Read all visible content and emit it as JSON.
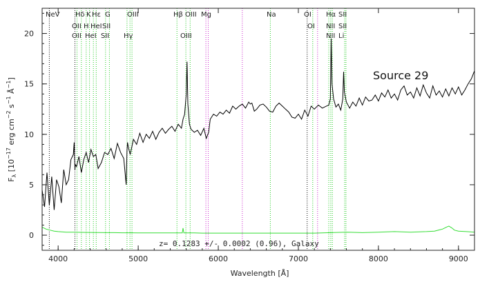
{
  "chart_data": {
    "type": "line",
    "title": "",
    "xlabel": "Wavelength [Å]",
    "ylabel": "F_λ [10^-17 erg cm^-2 s^-1 Å^-1]",
    "ylabel_parts": {
      "f": "F",
      "lambda": "λ",
      "a": " [10",
      "e17": "−17",
      "b": " erg cm",
      "e2a": "−2",
      "c": " s",
      "e1a": "−1",
      "d": " Å",
      "e1b": "−1",
      "close": "]"
    },
    "xlim": [
      3800,
      9200
    ],
    "ylim": [
      -1.5,
      22.5
    ],
    "x_ticks": [
      4000,
      5000,
      6000,
      7000,
      8000,
      9000
    ],
    "y_ticks": [
      0,
      5,
      10,
      15,
      20
    ],
    "source_label": "Source 29",
    "annotation": "z= 0.1283 +/- 0.0002 (0.96), Galaxy",
    "colors": {
      "flux": "#000000",
      "error": "#33dd33",
      "emission": "#22cc22",
      "absorption": "#000000",
      "sky": "#cc22cc"
    },
    "series": [
      {
        "role": "flux",
        "x": [
          3800,
          3830,
          3860,
          3890,
          3920,
          3950,
          3980,
          4010,
          4040,
          4070,
          4100,
          4130,
          4160,
          4190,
          4200,
          4210,
          4215,
          4230,
          4260,
          4290,
          4320,
          4350,
          4380,
          4410,
          4440,
          4470,
          4500,
          4540,
          4580,
          4620,
          4660,
          4700,
          4740,
          4780,
          4820,
          4850,
          4860,
          4866,
          4880,
          4900,
          4940,
          4980,
          5020,
          5060,
          5100,
          5140,
          5180,
          5220,
          5260,
          5300,
          5340,
          5380,
          5420,
          5460,
          5500,
          5540,
          5560,
          5580,
          5600,
          5610,
          5620,
          5640,
          5660,
          5700,
          5740,
          5780,
          5820,
          5850,
          5880,
          5900,
          5940,
          5980,
          6020,
          6060,
          6100,
          6140,
          6180,
          6220,
          6260,
          6300,
          6340,
          6380,
          6400,
          6420,
          6450,
          6480,
          6520,
          6560,
          6600,
          6640,
          6680,
          6720,
          6760,
          6800,
          6840,
          6880,
          6920,
          6960,
          7000,
          7040,
          7080,
          7120,
          7160,
          7200,
          7250,
          7300,
          7350,
          7380,
          7400,
          7410,
          7420,
          7440,
          7470,
          7500,
          7530,
          7555,
          7565,
          7575,
          7600,
          7640,
          7680,
          7720,
          7760,
          7800,
          7840,
          7880,
          7920,
          7960,
          8000,
          8040,
          8080,
          8120,
          8160,
          8200,
          8240,
          8280,
          8320,
          8360,
          8400,
          8440,
          8480,
          8520,
          8560,
          8600,
          8640,
          8680,
          8720,
          8760,
          8800,
          8840,
          8880,
          8920,
          8960,
          9000,
          9040,
          9080,
          9120,
          9160,
          9200
        ],
        "y": [
          4.5,
          2.8,
          6.2,
          3.0,
          5.8,
          2.5,
          5.5,
          4.8,
          3.2,
          6.5,
          5.0,
          5.5,
          7.5,
          8.0,
          9.2,
          6.5,
          7.0,
          6.8,
          7.8,
          6.2,
          7.5,
          8.2,
          7.2,
          8.5,
          7.8,
          8.0,
          6.6,
          7.2,
          8.2,
          8.0,
          8.6,
          7.6,
          9.1,
          8.2,
          7.6,
          5.0,
          8.4,
          9.2,
          8.6,
          8.0,
          9.5,
          9.0,
          10.1,
          9.2,
          10.0,
          9.6,
          10.3,
          9.5,
          10.2,
          10.6,
          10.1,
          10.5,
          10.8,
          10.3,
          11.0,
          10.6,
          11.5,
          12.0,
          14.0,
          17.2,
          13.0,
          11.0,
          10.5,
          10.2,
          10.4,
          9.9,
          10.6,
          9.6,
          10.2,
          11.5,
          12.0,
          11.8,
          12.2,
          12.0,
          12.4,
          12.1,
          12.8,
          12.5,
          12.8,
          13.0,
          12.6,
          13.2,
          13.0,
          13.1,
          12.3,
          12.5,
          12.9,
          13.0,
          12.7,
          12.3,
          12.2,
          12.8,
          13.1,
          12.8,
          12.5,
          12.2,
          11.7,
          11.6,
          12.0,
          11.5,
          12.4,
          11.8,
          12.8,
          12.5,
          12.9,
          12.6,
          12.8,
          12.9,
          13.5,
          19.5,
          15.0,
          13.5,
          12.7,
          13.0,
          12.4,
          13.5,
          16.2,
          14.2,
          13.2,
          12.6,
          13.2,
          12.8,
          13.6,
          12.9,
          13.7,
          13.3,
          13.4,
          13.9,
          13.3,
          14.1,
          13.7,
          14.4,
          13.6,
          14.0,
          13.4,
          14.4,
          14.8,
          13.9,
          14.2,
          13.6,
          14.6,
          13.8,
          14.9,
          14.1,
          13.6,
          14.8,
          13.9,
          14.3,
          13.7,
          14.5,
          13.8,
          14.6,
          14.0,
          14.7,
          13.9,
          14.4,
          15.0,
          15.5,
          16.3
        ]
      },
      {
        "role": "error",
        "x": [
          3800,
          3850,
          3900,
          3950,
          4000,
          4100,
          4200,
          4300,
          4400,
          4500,
          4600,
          4700,
          4800,
          4900,
          5000,
          5200,
          5400,
          5550,
          5560,
          5570,
          5600,
          5700,
          5800,
          6000,
          6200,
          6400,
          6600,
          6800,
          7000,
          7200,
          7400,
          7600,
          7800,
          8000,
          8200,
          8400,
          8600,
          8700,
          8800,
          8850,
          8880,
          8920,
          8950,
          9000,
          9100,
          9200
        ],
        "y": [
          0.8,
          0.6,
          0.5,
          0.4,
          0.35,
          0.3,
          0.3,
          0.28,
          0.27,
          0.26,
          0.25,
          0.25,
          0.24,
          0.24,
          0.23,
          0.23,
          0.22,
          0.22,
          0.7,
          0.22,
          0.22,
          0.22,
          0.2,
          0.2,
          0.2,
          0.2,
          0.2,
          0.2,
          0.2,
          0.2,
          0.25,
          0.3,
          0.25,
          0.3,
          0.35,
          0.3,
          0.35,
          0.4,
          0.6,
          0.8,
          0.9,
          0.7,
          0.5,
          0.4,
          0.35,
          0.3
        ]
      }
    ],
    "spectral_lines": {
      "top_row": [
        {
          "label": "NeV",
          "x": 3869,
          "kind": "emission"
        },
        {
          "label": "Hδ",
          "x": 4102,
          "kind": "absorption"
        },
        {
          "label": "K",
          "x": 3934,
          "kind": "absorption"
        },
        {
          "label": "Hε",
          "x": 4340,
          "kind": "absorption"
        },
        {
          "label": "G",
          "x": 4304,
          "kind": "absorption"
        },
        {
          "label": "OIII",
          "x": 4959,
          "kind": "emission"
        },
        {
          "label": "Hβ",
          "x": 4861,
          "kind": "emission"
        },
        {
          "label": "OIII",
          "x": 5007,
          "kind": "emission"
        },
        {
          "label": "Mg",
          "x": 5175,
          "kind": "absorption"
        },
        {
          "label": "Na",
          "x": 5894,
          "kind": "absorption"
        },
        {
          "label": "OI",
          "x": 6300,
          "kind": "emission"
        },
        {
          "label": "Hα",
          "x": 6563,
          "kind": "emission"
        },
        {
          "label": "SII",
          "x": 6717,
          "kind": "emission"
        }
      ],
      "second_row": [
        {
          "label": "OII",
          "x": 3727,
          "kind": "emission"
        },
        {
          "label": "H",
          "x": 3968,
          "kind": "absorption"
        },
        {
          "label": "HeI",
          "x": 3889,
          "kind": "emission"
        },
        {
          "label": "SII",
          "x": 4070,
          "kind": "emission"
        },
        {
          "label": "OI",
          "x": 6364,
          "kind": "emission"
        },
        {
          "label": "NII",
          "x": 6548,
          "kind": "emission"
        },
        {
          "label": "SII",
          "x": 6731,
          "kind": "emission"
        }
      ],
      "third_row": [
        {
          "label": "OII",
          "x": 3727,
          "kind": "emission"
        },
        {
          "label": "HeI",
          "x": 3889,
          "kind": "emission"
        },
        {
          "label": "SII",
          "x": 4070,
          "kind": "emission"
        },
        {
          "label": "Hγ",
          "x": 4340,
          "kind": "absorption"
        },
        {
          "label": "OIII",
          "x": 4959,
          "kind": "emission"
        },
        {
          "label": "NII",
          "x": 6583,
          "kind": "emission"
        },
        {
          "label": "Li",
          "x": 6707,
          "kind": "emission"
        }
      ]
    },
    "vertical_lines": [
      {
        "x": 3890,
        "color": "#000000",
        "style": "dotted"
      },
      {
        "x": 4210,
        "color": "#000000",
        "style": "dotted"
      },
      {
        "x": 4236,
        "color": "#22cc22",
        "style": "dotted"
      },
      {
        "x": 4290,
        "color": "#22cc22",
        "style": "dotted"
      },
      {
        "x": 4350,
        "color": "#22cc22",
        "style": "dotted"
      },
      {
        "x": 4392,
        "color": "#22cc22",
        "style": "dotted"
      },
      {
        "x": 4440,
        "color": "#22cc22",
        "style": "dotted"
      },
      {
        "x": 4475,
        "color": "#22cc22",
        "style": "dotted"
      },
      {
        "x": 4592,
        "color": "#22cc22",
        "style": "dotted"
      },
      {
        "x": 4640,
        "color": "#22cc22",
        "style": "dotted"
      },
      {
        "x": 4860,
        "color": "#22cc22",
        "style": "dotted"
      },
      {
        "x": 4897,
        "color": "#22cc22",
        "style": "dotted"
      },
      {
        "x": 4922,
        "color": "#22cc22",
        "style": "dotted"
      },
      {
        "x": 5484,
        "color": "#22cc22",
        "style": "dotted"
      },
      {
        "x": 5595,
        "color": "#22cc22",
        "style": "dotted"
      },
      {
        "x": 5649,
        "color": "#22cc22",
        "style": "dotted"
      },
      {
        "x": 5845,
        "color": "#cc22cc",
        "style": "dotted"
      },
      {
        "x": 5875,
        "color": "#cc22cc",
        "style": "dotted"
      },
      {
        "x": 6300,
        "color": "#cc22cc",
        "style": "dotted"
      },
      {
        "x": 6650,
        "color": "#22cc22",
        "style": "dotted"
      },
      {
        "x": 7110,
        "color": "#000000",
        "style": "dotted"
      },
      {
        "x": 7180,
        "color": "#22cc22",
        "style": "dotted"
      },
      {
        "x": 7240,
        "color": "#cc22cc",
        "style": "dotted"
      },
      {
        "x": 7380,
        "color": "#22cc22",
        "style": "dotted"
      },
      {
        "x": 7405,
        "color": "#22cc22",
        "style": "dotted"
      },
      {
        "x": 7425,
        "color": "#22cc22",
        "style": "dotted"
      },
      {
        "x": 7578,
        "color": "#22cc22",
        "style": "dotted"
      },
      {
        "x": 7595,
        "color": "#22cc22",
        "style": "dotted"
      }
    ],
    "grid": false,
    "legend": "none"
  }
}
